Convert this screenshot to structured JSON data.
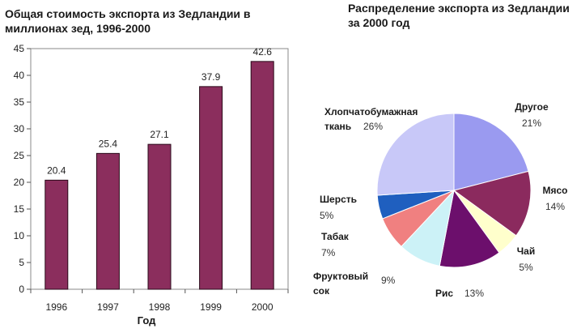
{
  "chart_data": [
    {
      "type": "bar",
      "title": [
        "Общая стоимость экспорта из Зедландии в",
        "миллионах зед, 1996-2000"
      ],
      "xlabel": "Год",
      "ylabel": "",
      "categories": [
        "1996",
        "1997",
        "1998",
        "1999",
        "2000"
      ],
      "values": [
        20.4,
        25.4,
        27.1,
        37.9,
        42.6
      ],
      "data_labels": [
        "20.4",
        "25.4",
        "27.1",
        "37.9",
        "42.6"
      ],
      "ylim": [
        0,
        45
      ],
      "yticks": [
        0,
        5,
        10,
        15,
        20,
        25,
        30,
        35,
        40,
        45
      ],
      "ytick_labels": [
        "0",
        "5",
        "10",
        "15",
        "20",
        "25",
        "30",
        "35",
        "40",
        "45"
      ],
      "bar_color": "#8b2e5d",
      "grid": false
    },
    {
      "type": "pie",
      "title": [
        "Распределение экспорта из Зедландии",
        "за 2000 год"
      ],
      "slices": [
        {
          "name": [
            "Другое"
          ],
          "pct_label": "21%",
          "value": 21,
          "color": "#9a9af0"
        },
        {
          "name": [
            "Мясо"
          ],
          "pct_label": "14%",
          "value": 14,
          "color": "#8b2a5e"
        },
        {
          "name": [
            "Чай"
          ],
          "pct_label": "5%",
          "value": 5,
          "color": "#ffffcc"
        },
        {
          "name": [
            "Рис"
          ],
          "pct_label": "13%",
          "value": 13,
          "color": "#6c0f6c"
        },
        {
          "name": [
            "Фруктовый",
            "сок"
          ],
          "pct_label": "9%",
          "value": 9,
          "color": "#ccf2f7"
        },
        {
          "name": [
            "Табак"
          ],
          "pct_label": "7%",
          "value": 7,
          "color": "#f08080"
        },
        {
          "name": [
            "Шерсть"
          ],
          "pct_label": "5%",
          "value": 5,
          "color": "#1f5fbf"
        },
        {
          "name": [
            "Хлопчатобумажная",
            "ткань"
          ],
          "pct_label": "26%",
          "value": 26,
          "color": "#c8c8f8"
        }
      ]
    }
  ]
}
